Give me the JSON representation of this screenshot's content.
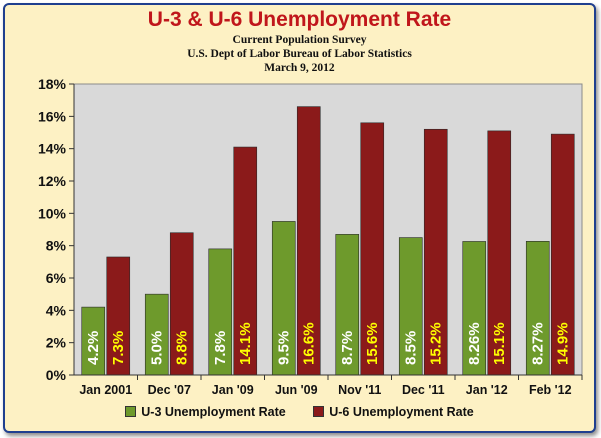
{
  "chart_data": {
    "type": "bar",
    "title": "U-3 & U-6 Unemployment Rate",
    "subtitle": [
      "Current Population Survey",
      "U.S. Dept of Labor Bureau of Labor Statistics",
      "March 9, 2012"
    ],
    "categories": [
      "Jan 2001",
      "Dec '07",
      "Jan '09",
      "Jun '09",
      "Nov '11",
      "Dec '11",
      "Jan '12",
      "Feb '12"
    ],
    "series": [
      {
        "name": "U-3 Unemployment Rate",
        "color": "#6e9a2c",
        "label_color": "#ffffff",
        "values": [
          4.2,
          5.0,
          7.8,
          9.5,
          8.7,
          8.5,
          8.26,
          8.27
        ],
        "labels": [
          "4.2%",
          "5.0%",
          "7.8%",
          "9.5%",
          "8.7%",
          "8.5%",
          "8.26%",
          "8.27%"
        ]
      },
      {
        "name": "U-6 Unemployment Rate",
        "color": "#8b1a1a",
        "label_color": "#ffff00",
        "values": [
          7.3,
          8.8,
          14.1,
          16.6,
          15.6,
          15.2,
          15.1,
          14.9
        ],
        "labels": [
          "7.3%",
          "8.8%",
          "14.1%",
          "16.6%",
          "15.6%",
          "15.2%",
          "15.1%",
          "14.9%"
        ]
      }
    ],
    "yticks": [
      "0%",
      "2%",
      "4%",
      "6%",
      "8%",
      "10%",
      "12%",
      "14%",
      "16%",
      "18%"
    ],
    "ylim": [
      0,
      18
    ],
    "xlabel": "",
    "ylabel": "",
    "grid": false,
    "legend": "bottom",
    "plot_background": "#d9d9d9"
  }
}
